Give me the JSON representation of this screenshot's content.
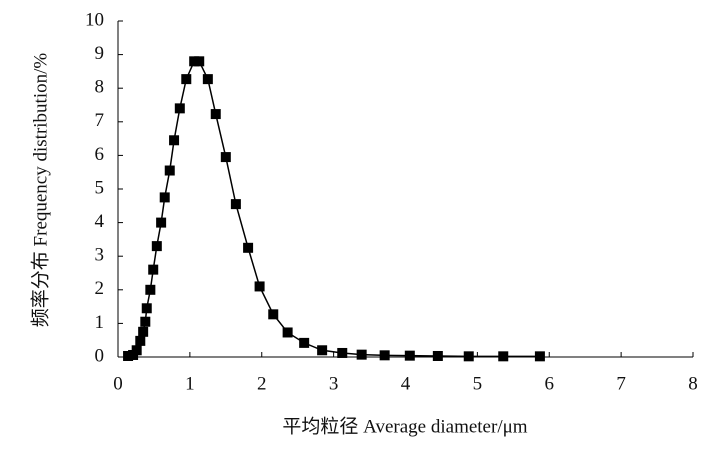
{
  "chart_data": {
    "type": "line",
    "x_label": "平均粒径 Average diameter/μm",
    "y_label": "频率分布 Frequency distribution/%",
    "x": [
      0.14,
      0.21,
      0.26,
      0.31,
      0.35,
      0.38,
      0.4,
      0.45,
      0.49,
      0.54,
      0.6,
      0.65,
      0.72,
      0.78,
      0.86,
      0.95,
      1.06,
      1.13,
      1.25,
      1.36,
      1.5,
      1.64,
      1.81,
      1.97,
      2.16,
      2.36,
      2.59,
      2.84,
      3.12,
      3.39,
      3.71,
      4.06,
      4.45,
      4.88,
      5.36,
      5.87
    ],
    "series": [
      {
        "color": "#000000",
        "marker": "square",
        "values": [
          0.03,
          0.06,
          0.2,
          0.48,
          0.75,
          1.05,
          1.45,
          2.0,
          2.6,
          3.3,
          4.0,
          4.75,
          5.55,
          6.45,
          7.4,
          8.27,
          8.8,
          8.8,
          8.27,
          7.23,
          5.95,
          4.55,
          3.25,
          2.1,
          1.27,
          0.73,
          0.42,
          0.2,
          0.12,
          0.07,
          0.05,
          0.04,
          0.03,
          0.02,
          0.02,
          0.02
        ]
      }
    ],
    "xlim": [
      0,
      8
    ],
    "xticks": [
      0,
      1,
      2,
      3,
      4,
      5,
      6,
      7,
      8
    ],
    "ylim": [
      0,
      10
    ],
    "yticks": [
      0,
      1,
      2,
      3,
      4,
      5,
      6,
      7,
      8,
      9,
      10
    ],
    "grid": false
  }
}
